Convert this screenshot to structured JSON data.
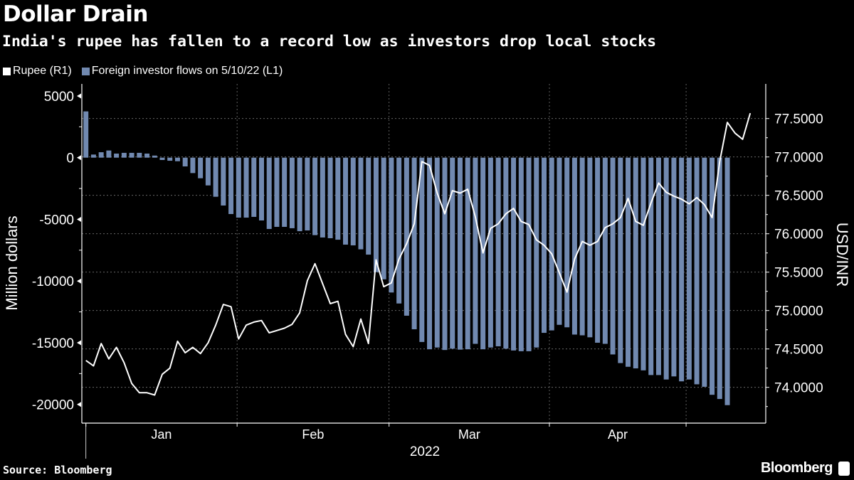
{
  "header": {
    "title": "Dollar Drain",
    "subtitle": "India's rupee has fallen to a record low as investors drop local stocks"
  },
  "legend": [
    {
      "label": "Rupee (R1)",
      "color": "#ffffff"
    },
    {
      "label": "Foreign investor flows on 5/10/22 (L1)",
      "color": "#7189b0"
    }
  ],
  "footer": {
    "source": "Source: Bloomberg",
    "brand": "Bloomberg",
    "brand_icon": "bloomberg-chart-icon"
  },
  "chart_data": {
    "type": "bar+line",
    "title": "Dollar Drain",
    "subtitle": "India's rupee has fallen to a record low as investors drop local stocks",
    "xlabel": "2022",
    "x_tick_labels": [
      "Jan",
      "Feb",
      "Mar",
      "Apr"
    ],
    "left_axis": {
      "label": "Million dollars",
      "ticks": [
        5000,
        0,
        -5000,
        -10000,
        -15000,
        -20000
      ],
      "tick_labels": [
        "5000",
        "0",
        "-5000",
        "-10000",
        "-15000",
        "-20000"
      ],
      "range": [
        -21500,
        6500
      ]
    },
    "right_axis": {
      "label": "USD/INR",
      "ticks": [
        77.5,
        77.0,
        76.5,
        76.0,
        75.5,
        75.0,
        74.5,
        74.0
      ],
      "tick_labels": [
        "77.5000",
        "77.0000",
        "76.5000",
        "76.0000",
        "75.5000",
        "75.0000",
        "74.5000",
        "74.0000"
      ],
      "range": [
        73.55,
        77.95
      ]
    },
    "grid": true,
    "legend_position": "top-left",
    "series": [
      {
        "name": "Foreign investor flows on 5/10/22 (L1)",
        "type": "bar",
        "axis": "left",
        "color": "#7189b0",
        "values": [
          3750,
          250,
          440,
          580,
          330,
          390,
          390,
          390,
          330,
          170,
          -190,
          -250,
          -290,
          -710,
          -1250,
          -1670,
          -2250,
          -3170,
          -3880,
          -4570,
          -4860,
          -4860,
          -4800,
          -5090,
          -5780,
          -5610,
          -5610,
          -5720,
          -5960,
          -5900,
          -6280,
          -6470,
          -6530,
          -6650,
          -7050,
          -7110,
          -7430,
          -7860,
          -9280,
          -9860,
          -10930,
          -11820,
          -12810,
          -13910,
          -14940,
          -15530,
          -15390,
          -15590,
          -15480,
          -15560,
          -15530,
          -15090,
          -15530,
          -15390,
          -15290,
          -15480,
          -15630,
          -15690,
          -15690,
          -15390,
          -14200,
          -14000,
          -13550,
          -13750,
          -14340,
          -14400,
          -14560,
          -15000,
          -15090,
          -15950,
          -16650,
          -16950,
          -17080,
          -17240,
          -17620,
          -17620,
          -17980,
          -17730,
          -18130,
          -17980,
          -18370,
          -18570,
          -19220,
          -19560,
          -20060
        ]
      },
      {
        "name": "Rupee (R1)",
        "type": "line",
        "axis": "right",
        "color": "#ffffff",
        "values": [
          74.35,
          74.28,
          74.57,
          74.37,
          74.52,
          74.32,
          74.05,
          73.93,
          73.93,
          73.9,
          74.17,
          74.25,
          74.6,
          74.45,
          74.52,
          74.44,
          74.58,
          74.81,
          75.08,
          75.05,
          74.63,
          74.81,
          74.85,
          74.87,
          74.71,
          74.74,
          74.77,
          74.82,
          74.97,
          75.39,
          75.61,
          75.35,
          75.09,
          75.12,
          74.69,
          74.53,
          74.89,
          74.57,
          75.66,
          75.31,
          75.36,
          75.67,
          75.87,
          76.13,
          76.94,
          76.89,
          76.53,
          76.26,
          76.56,
          76.53,
          76.58,
          76.22,
          75.75,
          76.07,
          76.13,
          76.26,
          76.33,
          76.16,
          76.12,
          75.92,
          75.85,
          75.74,
          75.49,
          75.24,
          75.67,
          75.9,
          75.85,
          75.9,
          76.08,
          76.13,
          76.21,
          76.46,
          76.16,
          76.11,
          76.4,
          76.66,
          76.54,
          76.49,
          76.45,
          76.39,
          76.47,
          76.38,
          76.21,
          76.94,
          77.45,
          77.31,
          77.23,
          77.57
        ]
      }
    ]
  }
}
